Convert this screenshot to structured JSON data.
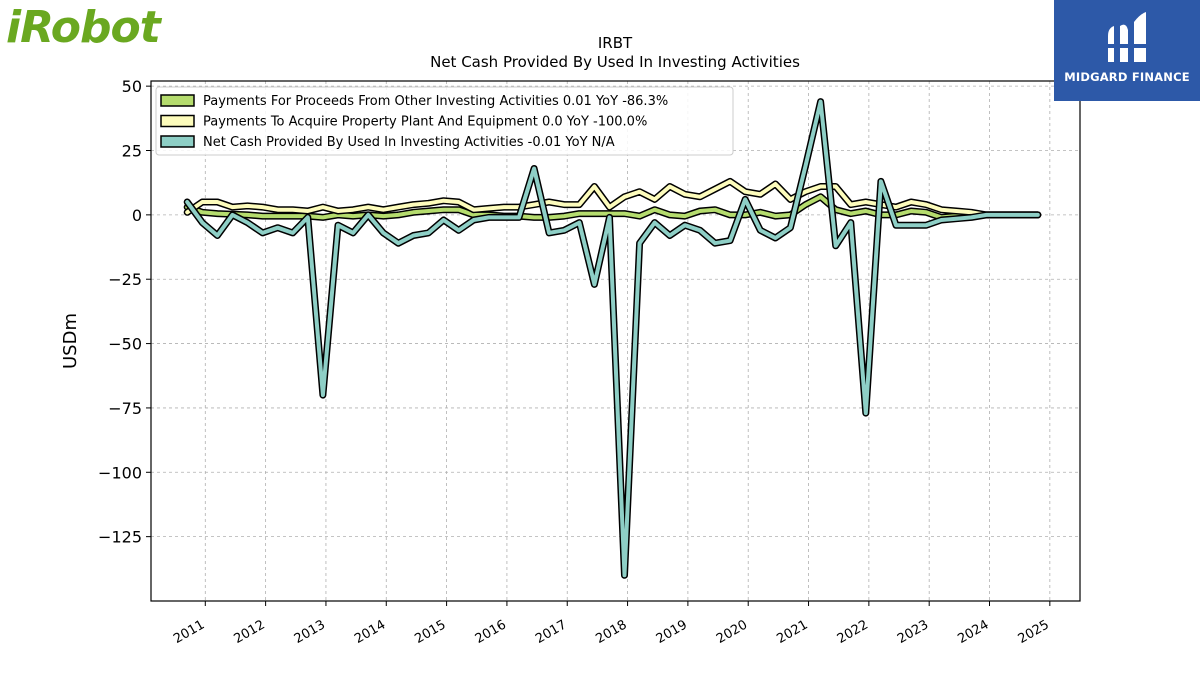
{
  "logo_left": {
    "text": "iRobot",
    "color": "#6aa820"
  },
  "logo_right": {
    "text": "MIDGARD FINANCE",
    "background": "#2d59a8"
  },
  "chart_data": {
    "type": "line",
    "title": "IRBT",
    "subtitle": "Net Cash Provided By Used In Investing Activities",
    "ylabel": "USDm",
    "xlabel": "",
    "xlim": [
      2010.1,
      2025.5
    ],
    "ylim": [
      -150,
      52
    ],
    "yticks": [
      50,
      25,
      0,
      -25,
      -50,
      -75,
      -100,
      -125
    ],
    "ytick_labels": [
      "50",
      "25",
      "0",
      "−25",
      "−50",
      "−75",
      "−100",
      "−125"
    ],
    "xticks": [
      2011,
      2012,
      2013,
      2014,
      2015,
      2016,
      2017,
      2018,
      2019,
      2020,
      2021,
      2022,
      2023,
      2024,
      2025
    ],
    "xtick_labels": [
      "2011",
      "2012",
      "2013",
      "2014",
      "2015",
      "2016",
      "2017",
      "2018",
      "2019",
      "2020",
      "2021",
      "2022",
      "2023",
      "2024",
      "2025"
    ],
    "grid": true,
    "legend_position": "top-left",
    "series": [
      {
        "name": "Payments For Proceeds From Other Investing Activities  0.01 YoY -86.3%",
        "color": "#b5dc6e",
        "x": [
          2010.7,
          2010.95,
          2011.2,
          2011.45,
          2011.7,
          2011.95,
          2012.2,
          2012.45,
          2012.7,
          2012.95,
          2013.2,
          2013.45,
          2013.7,
          2013.95,
          2014.2,
          2014.45,
          2014.7,
          2014.95,
          2015.2,
          2015.45,
          2015.7,
          2015.95,
          2016.2,
          2016.45,
          2016.7,
          2016.95,
          2017.2,
          2017.45,
          2017.7,
          2017.95,
          2018.2,
          2018.45,
          2018.7,
          2018.95,
          2019.2,
          2019.45,
          2019.7,
          2019.95,
          2020.2,
          2020.45,
          2020.7,
          2020.95,
          2021.2,
          2021.45,
          2021.7,
          2021.95,
          2022.2,
          2022.45,
          2022.7,
          2022.95,
          2023.2,
          2023.45,
          2023.7,
          2023.95,
          2024.2,
          2024.45,
          2024.8
        ],
        "values": [
          3,
          1,
          0.5,
          0.2,
          0,
          -0.5,
          -0.5,
          -0.5,
          -0.5,
          -1,
          0,
          -0.5,
          0,
          -0.5,
          0,
          1,
          1.5,
          2,
          2,
          0,
          0,
          -0.5,
          -0.5,
          -1,
          -1,
          -0.5,
          0.5,
          0.5,
          0.5,
          0.5,
          -0.5,
          2,
          0,
          -0.5,
          1.5,
          2,
          0,
          0,
          1,
          -0.5,
          0,
          4,
          7,
          2,
          0.5,
          1.5,
          0,
          0,
          1.5,
          1,
          -1,
          -0.5,
          0,
          0,
          0,
          0,
          0
        ]
      },
      {
        "name": "Payments To Acquire Property Plant And Equipment  0.0 YoY -100.0%",
        "color": "#fdfcbc",
        "x": [
          2010.7,
          2010.95,
          2011.2,
          2011.45,
          2011.7,
          2011.95,
          2012.2,
          2012.45,
          2012.7,
          2012.95,
          2013.2,
          2013.45,
          2013.7,
          2013.95,
          2014.2,
          2014.45,
          2014.7,
          2014.95,
          2015.2,
          2015.45,
          2015.7,
          2015.95,
          2016.2,
          2016.45,
          2016.7,
          2016.95,
          2017.2,
          2017.45,
          2017.7,
          2017.95,
          2018.2,
          2018.45,
          2018.7,
          2018.95,
          2019.2,
          2019.45,
          2019.7,
          2019.95,
          2020.2,
          2020.45,
          2020.7,
          2020.95,
          2021.2,
          2021.45,
          2021.7,
          2021.95,
          2022.2,
          2022.45,
          2022.7,
          2022.95,
          2023.2,
          2023.45,
          2023.7,
          2023.95,
          2024.2,
          2024.45,
          2024.8
        ],
        "values": [
          1,
          5,
          5,
          3,
          3.5,
          3,
          2,
          2,
          1.5,
          3,
          1.5,
          2,
          3,
          2,
          3,
          4,
          4.5,
          5.5,
          5,
          2,
          2.5,
          3,
          3,
          4,
          5,
          4,
          4,
          11,
          3,
          7,
          9,
          6,
          11,
          8,
          7,
          10,
          13,
          9,
          8,
          12,
          6,
          9,
          11,
          11,
          4,
          5,
          4,
          3,
          5,
          4,
          2,
          1.5,
          1,
          0,
          0,
          0,
          0
        ]
      },
      {
        "name": "Net Cash Provided By Used In Investing Activities  -0.01 YoY N/A",
        "color": "#8ecfc6",
        "x": [
          2010.7,
          2010.95,
          2011.2,
          2011.45,
          2011.7,
          2011.95,
          2012.2,
          2012.45,
          2012.7,
          2012.95,
          2013.2,
          2013.45,
          2013.7,
          2013.95,
          2014.2,
          2014.45,
          2014.7,
          2014.95,
          2015.2,
          2015.45,
          2015.7,
          2015.95,
          2016.2,
          2016.45,
          2016.7,
          2016.95,
          2017.2,
          2017.45,
          2017.7,
          2017.95,
          2018.2,
          2018.45,
          2018.7,
          2018.95,
          2019.2,
          2019.45,
          2019.7,
          2019.95,
          2020.2,
          2020.45,
          2020.7,
          2020.95,
          2021.2,
          2021.45,
          2021.7,
          2021.95,
          2022.2,
          2022.45,
          2022.7,
          2022.95,
          2023.2,
          2023.45,
          2023.7,
          2023.95,
          2024.2,
          2024.45,
          2024.8
        ],
        "values": [
          5,
          -3,
          -8,
          0,
          -3,
          -7,
          -5,
          -7,
          -1,
          -70,
          -4,
          -7,
          0,
          -7,
          -11,
          -8,
          -7,
          -2,
          -6,
          -2,
          -1,
          -1,
          -1,
          18,
          -7,
          -6,
          -3,
          -27,
          -1,
          -140,
          -11,
          -3,
          -8,
          -4,
          -6,
          -11,
          -10,
          6,
          -6,
          -9,
          -5,
          19,
          44,
          -12,
          -3,
          -77,
          13,
          -4,
          -4,
          -4,
          -2,
          -1.5,
          -1,
          0,
          0,
          0,
          0
        ]
      }
    ]
  }
}
